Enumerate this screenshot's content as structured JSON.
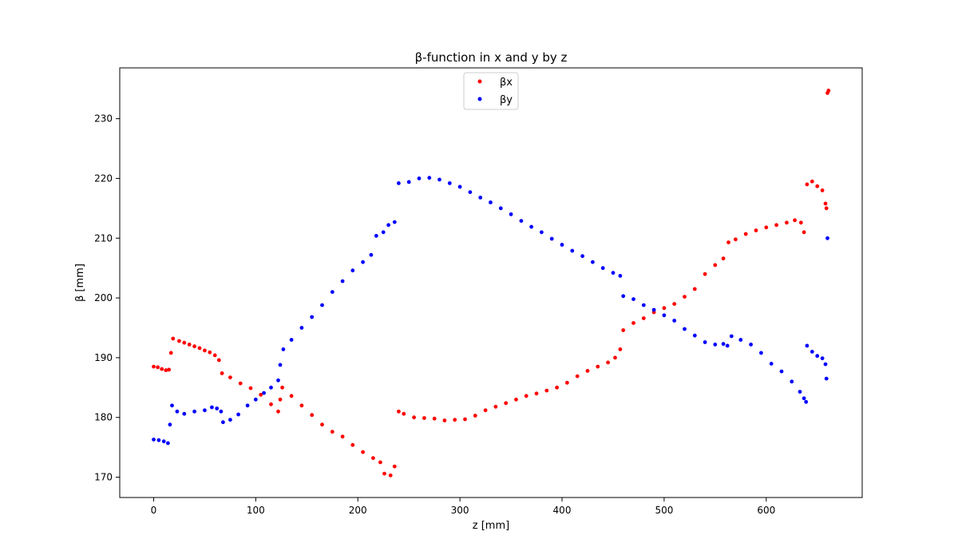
{
  "chart_data": {
    "type": "scatter",
    "title": "β-function in x and y by z",
    "xlabel": "z [mm]",
    "ylabel": "β [mm]",
    "xlim": [
      -33.2,
      694
    ],
    "ylim": [
      166.6,
      238.5
    ],
    "xticks": [
      0,
      100,
      200,
      300,
      400,
      500,
      600
    ],
    "yticks": [
      170,
      180,
      190,
      200,
      210,
      220,
      230
    ],
    "grid": false,
    "legend_position": "top-center",
    "series": [
      {
        "name": "βx",
        "color": "#ff0000",
        "points": [
          [
            0,
            188.5
          ],
          [
            4,
            188.4
          ],
          [
            8,
            188.1
          ],
          [
            12,
            187.9
          ],
          [
            15,
            188.0
          ],
          [
            17,
            190.8
          ],
          [
            19,
            193.2
          ],
          [
            25,
            192.8
          ],
          [
            30,
            192.5
          ],
          [
            35,
            192.2
          ],
          [
            40,
            191.9
          ],
          [
            45,
            191.6
          ],
          [
            50,
            191.2
          ],
          [
            55,
            190.9
          ],
          [
            60,
            190.4
          ],
          [
            64,
            189.6
          ],
          [
            67,
            187.4
          ],
          [
            75,
            186.7
          ],
          [
            85,
            185.7
          ],
          [
            95,
            184.9
          ],
          [
            105,
            183.8
          ],
          [
            115,
            182.2
          ],
          [
            122,
            181.0
          ],
          [
            124,
            183.0
          ],
          [
            126,
            185.0
          ],
          [
            135,
            183.6
          ],
          [
            145,
            182.0
          ],
          [
            155,
            180.4
          ],
          [
            165,
            178.8
          ],
          [
            175,
            177.6
          ],
          [
            185,
            176.8
          ],
          [
            195,
            175.4
          ],
          [
            205,
            174.2
          ],
          [
            215,
            173.2
          ],
          [
            222,
            172.5
          ],
          [
            226,
            170.6
          ],
          [
            232,
            170.3
          ],
          [
            236,
            171.8
          ],
          [
            240,
            181.0
          ],
          [
            245,
            180.6
          ],
          [
            255,
            180.0
          ],
          [
            265,
            179.9
          ],
          [
            275,
            179.8
          ],
          [
            285,
            179.5
          ],
          [
            295,
            179.6
          ],
          [
            305,
            179.7
          ],
          [
            315,
            180.3
          ],
          [
            325,
            181.2
          ],
          [
            335,
            181.8
          ],
          [
            345,
            182.4
          ],
          [
            355,
            183.0
          ],
          [
            365,
            183.6
          ],
          [
            375,
            184.0
          ],
          [
            385,
            184.5
          ],
          [
            395,
            185.0
          ],
          [
            405,
            185.8
          ],
          [
            415,
            186.9
          ],
          [
            425,
            187.8
          ],
          [
            435,
            188.5
          ],
          [
            445,
            189.2
          ],
          [
            452,
            190.0
          ],
          [
            457,
            191.4
          ],
          [
            460,
            194.6
          ],
          [
            470,
            195.8
          ],
          [
            480,
            196.6
          ],
          [
            490,
            197.6
          ],
          [
            500,
            198.3
          ],
          [
            510,
            199.0
          ],
          [
            520,
            200.2
          ],
          [
            530,
            201.5
          ],
          [
            540,
            204.0
          ],
          [
            550,
            205.5
          ],
          [
            558,
            206.6
          ],
          [
            563,
            209.3
          ],
          [
            570,
            209.8
          ],
          [
            580,
            210.7
          ],
          [
            590,
            211.3
          ],
          [
            600,
            211.8
          ],
          [
            610,
            212.2
          ],
          [
            620,
            212.6
          ],
          [
            628,
            213.0
          ],
          [
            634,
            212.6
          ],
          [
            637,
            211.0
          ],
          [
            640,
            219.0
          ],
          [
            645,
            219.5
          ],
          [
            650,
            218.7
          ],
          [
            655,
            218.0
          ],
          [
            658,
            215.8
          ],
          [
            659,
            215.0
          ],
          [
            660,
            234.3
          ],
          [
            661,
            234.7
          ]
        ]
      },
      {
        "name": "βy",
        "color": "#0000ff",
        "points": [
          [
            0,
            176.3
          ],
          [
            5,
            176.2
          ],
          [
            10,
            176.0
          ],
          [
            14,
            175.7
          ],
          [
            16,
            178.8
          ],
          [
            18,
            182.0
          ],
          [
            23,
            181.0
          ],
          [
            30,
            180.6
          ],
          [
            40,
            181.0
          ],
          [
            50,
            181.2
          ],
          [
            57,
            181.7
          ],
          [
            62,
            181.5
          ],
          [
            66,
            181.0
          ],
          [
            68,
            179.2
          ],
          [
            75,
            179.6
          ],
          [
            83,
            180.5
          ],
          [
            92,
            182.0
          ],
          [
            100,
            183.0
          ],
          [
            108,
            184.1
          ],
          [
            115,
            185.0
          ],
          [
            122,
            186.2
          ],
          [
            124,
            188.8
          ],
          [
            127,
            191.4
          ],
          [
            135,
            193.0
          ],
          [
            145,
            195.0
          ],
          [
            155,
            196.8
          ],
          [
            165,
            198.8
          ],
          [
            175,
            201.0
          ],
          [
            185,
            202.8
          ],
          [
            195,
            204.6
          ],
          [
            205,
            206.0
          ],
          [
            213,
            207.2
          ],
          [
            218,
            210.4
          ],
          [
            225,
            211.0
          ],
          [
            230,
            212.2
          ],
          [
            236,
            212.7
          ],
          [
            240,
            219.2
          ],
          [
            250,
            219.4
          ],
          [
            260,
            220.0
          ],
          [
            270,
            220.1
          ],
          [
            280,
            219.8
          ],
          [
            290,
            219.2
          ],
          [
            300,
            218.6
          ],
          [
            310,
            217.7
          ],
          [
            320,
            216.8
          ],
          [
            330,
            216.0
          ],
          [
            340,
            215.0
          ],
          [
            350,
            214.0
          ],
          [
            360,
            212.9
          ],
          [
            370,
            211.9
          ],
          [
            380,
            211.0
          ],
          [
            390,
            209.9
          ],
          [
            400,
            208.9
          ],
          [
            410,
            207.9
          ],
          [
            420,
            207.0
          ],
          [
            430,
            206.0
          ],
          [
            440,
            205.0
          ],
          [
            450,
            204.2
          ],
          [
            457,
            203.7
          ],
          [
            460,
            200.3
          ],
          [
            470,
            199.8
          ],
          [
            480,
            198.8
          ],
          [
            490,
            198.0
          ],
          [
            500,
            197.1
          ],
          [
            510,
            196.2
          ],
          [
            520,
            194.8
          ],
          [
            530,
            193.7
          ],
          [
            540,
            192.6
          ],
          [
            550,
            192.2
          ],
          [
            558,
            192.3
          ],
          [
            562,
            192.0
          ],
          [
            566,
            193.6
          ],
          [
            575,
            193.0
          ],
          [
            585,
            192.2
          ],
          [
            595,
            190.8
          ],
          [
            605,
            189.0
          ],
          [
            615,
            187.7
          ],
          [
            625,
            186.0
          ],
          [
            633,
            184.3
          ],
          [
            637,
            183.2
          ],
          [
            639,
            182.6
          ],
          [
            640,
            192.0
          ],
          [
            645,
            191.0
          ],
          [
            650,
            190.3
          ],
          [
            655,
            189.9
          ],
          [
            658,
            188.9
          ],
          [
            659,
            186.5
          ],
          [
            660,
            210.0
          ]
        ]
      }
    ]
  }
}
